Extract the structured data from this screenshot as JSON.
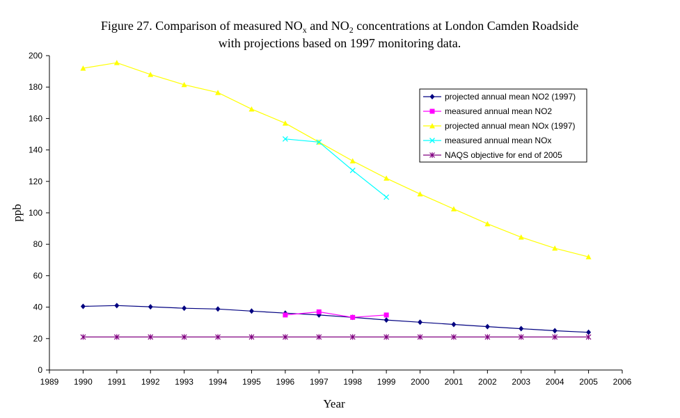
{
  "chart_data": {
    "type": "line",
    "title_line1": {
      "part1": "Figure 27. Comparison of measured NO",
      "sub1": "x",
      "part2": " and NO",
      "sub2": "2",
      "part3": " concentrations at London Camden Roadside"
    },
    "title_line2": "with projections based on 1997 monitoring data.",
    "xlabel": "Year",
    "ylabel": "ppb",
    "xlim": [
      1989,
      2006
    ],
    "ylim": [
      0,
      200
    ],
    "x_ticks": [
      "1989",
      "1990",
      "1991",
      "1992",
      "1993",
      "1994",
      "1995",
      "1996",
      "1997",
      "1998",
      "1999",
      "2000",
      "2001",
      "2002",
      "2003",
      "2004",
      "2005",
      "2006"
    ],
    "y_ticks": [
      "0",
      "20",
      "40",
      "60",
      "80",
      "100",
      "120",
      "140",
      "160",
      "180",
      "200"
    ],
    "grid": false,
    "legend_position": "top-right",
    "series": [
      {
        "name": "projected annual mean NO2 (1997)",
        "color": "#000080",
        "marker": "diamond",
        "x": [
          1990,
          1991,
          1992,
          1993,
          1994,
          1995,
          1996,
          1997,
          1998,
          1999,
          2000,
          2001,
          2002,
          2003,
          2004,
          2005
        ],
        "y": [
          40.5,
          41,
          40.2,
          39.3,
          38.8,
          37.5,
          36.2,
          35,
          33.5,
          31.8,
          30.4,
          29,
          27.6,
          26.3,
          25,
          24
        ]
      },
      {
        "name": "measured annual mean NO2",
        "color": "#ff00ff",
        "marker": "square",
        "x": [
          1996,
          1997,
          1998,
          1999
        ],
        "y": [
          35,
          37,
          33.5,
          35
        ]
      },
      {
        "name": "projected annual mean NOx (1997)",
        "color": "#ffff00",
        "marker": "triangle",
        "x": [
          1990,
          1991,
          1992,
          1993,
          1994,
          1995,
          1996,
          1997,
          1998,
          1999,
          2000,
          2001,
          2002,
          2003,
          2004,
          2005
        ],
        "y": [
          192,
          195.5,
          188,
          181.5,
          176.5,
          166,
          157,
          145,
          133,
          122,
          112,
          102.5,
          93,
          84.5,
          77.5,
          72
        ]
      },
      {
        "name": "measured annual mean NOx",
        "color": "#00ffff",
        "marker": "x",
        "x": [
          1996,
          1997,
          1998,
          1999
        ],
        "y": [
          147,
          145,
          127,
          110
        ]
      },
      {
        "name": "NAQS objective for end of 2005",
        "color": "#800080",
        "marker": "star",
        "x": [
          1990,
          1991,
          1992,
          1993,
          1994,
          1995,
          1996,
          1997,
          1998,
          1999,
          2000,
          2001,
          2002,
          2003,
          2004,
          2005
        ],
        "y": [
          21,
          21,
          21,
          21,
          21,
          21,
          21,
          21,
          21,
          21,
          21,
          21,
          21,
          21,
          21,
          21
        ]
      }
    ]
  }
}
